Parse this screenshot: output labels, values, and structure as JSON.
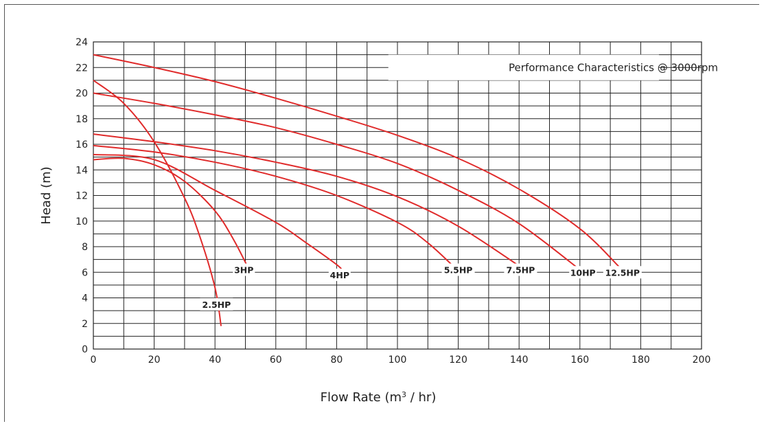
{
  "chart_data": {
    "type": "line",
    "title": "Performance Characteristics @ 3000rpm",
    "xlabel": "Flow Rate (m³ / hr)",
    "ylabel": "Head (m)",
    "xlim": [
      0,
      200
    ],
    "ylim": [
      0,
      24
    ],
    "x_ticks": [
      0,
      20,
      40,
      60,
      80,
      100,
      120,
      140,
      160,
      180,
      200
    ],
    "y_ticks": [
      0,
      2,
      4,
      6,
      8,
      10,
      12,
      14,
      16,
      18,
      20,
      22,
      24
    ],
    "grid": true,
    "line_color": "#e02b2b",
    "series": [
      {
        "name": "2.5HP",
        "x": [
          0,
          10,
          20,
          30,
          35,
          40,
          42
        ],
        "y": [
          21,
          19.2,
          16.2,
          11.8,
          8.8,
          4.8,
          1.8
        ]
      },
      {
        "name": "3HP",
        "x": [
          0,
          10,
          20,
          30,
          40,
          46,
          51
        ],
        "y": [
          14.8,
          14.9,
          14.4,
          13.1,
          10.8,
          8.6,
          6.3
        ]
      },
      {
        "name": "4HP",
        "x": [
          0,
          20,
          40,
          60,
          70,
          80,
          82
        ],
        "y": [
          15.2,
          14.8,
          12.4,
          9.9,
          8.3,
          6.6,
          6.1
        ]
      },
      {
        "name": "5.5HP",
        "x": [
          0,
          20,
          40,
          60,
          80,
          100,
          110,
          120
        ],
        "y": [
          15.9,
          15.4,
          14.6,
          13.5,
          12.0,
          9.9,
          8.3,
          6.1
        ]
      },
      {
        "name": "7.5HP",
        "x": [
          0,
          20,
          40,
          60,
          80,
          100,
          120,
          140
        ],
        "y": [
          16.8,
          16.2,
          15.5,
          14.6,
          13.5,
          11.9,
          9.6,
          6.5
        ]
      },
      {
        "name": "10HP",
        "x": [
          0,
          20,
          40,
          60,
          80,
          100,
          120,
          140,
          160
        ],
        "y": [
          20,
          19.2,
          18.3,
          17.3,
          16.0,
          14.5,
          12.4,
          9.8,
          6.2
        ]
      },
      {
        "name": "12.5HP",
        "x": [
          0,
          20,
          40,
          60,
          80,
          100,
          120,
          140,
          160,
          173
        ],
        "y": [
          23,
          22.0,
          20.9,
          19.6,
          18.2,
          16.7,
          14.9,
          12.5,
          9.4,
          6.4
        ]
      }
    ],
    "curve_labels": [
      {
        "text": "2.5HP",
        "x": 40.5,
        "y": 3.5
      },
      {
        "text": "3HP",
        "x": 49.5,
        "y": 6.2
      },
      {
        "text": "4HP",
        "x": 81,
        "y": 5.8
      },
      {
        "text": "5.5HP",
        "x": 120,
        "y": 6.2
      },
      {
        "text": "7.5HP",
        "x": 140.5,
        "y": 6.2
      },
      {
        "text": "10HP",
        "x": 161,
        "y": 6.0
      },
      {
        "text": "12.5HP",
        "x": 174,
        "y": 6.0
      }
    ]
  }
}
